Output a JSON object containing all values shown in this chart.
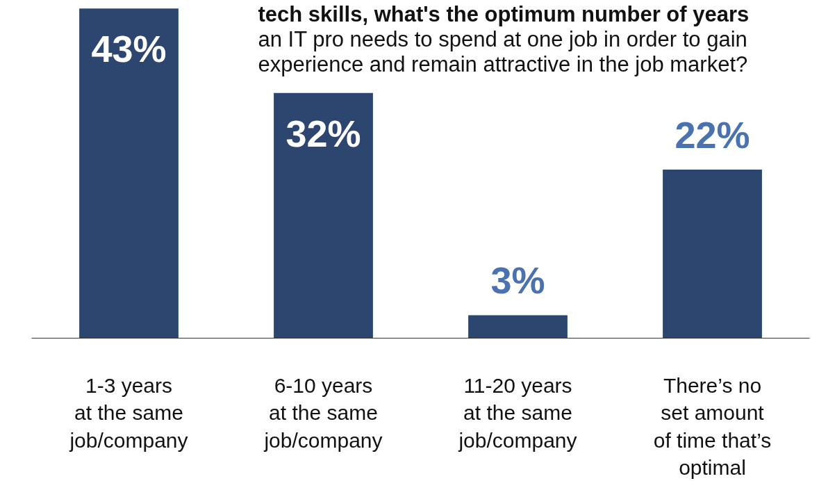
{
  "chart_data": {
    "type": "bar",
    "title": "tech skills, what's the optimum number of years\nan IT pro needs to spend at one job in order to gain\nexperience and remain attractive in the job market?",
    "categories": [
      "1-3 years\nat the same\njob/company",
      "6-10 years\nat the same\njob/company",
      "11-20 years\nat the same\njob/company",
      "There’s no\nset amount\nof time that’s\noptimal"
    ],
    "values": [
      43,
      32,
      3,
      22
    ],
    "color": "#2c4670",
    "value_labels": [
      "43%",
      "32%",
      "3%",
      "22%"
    ],
    "grid": false
  }
}
